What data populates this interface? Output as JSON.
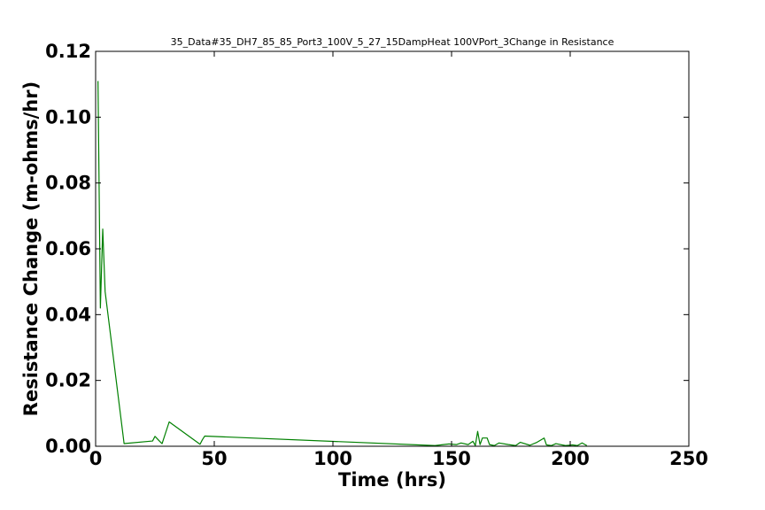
{
  "chart_data": {
    "type": "line",
    "title": "35_Data#35_DH7_85_85_Port3_100V_5_27_15DampHeat 100VPort_3Change in Resistance",
    "xlabel": "Time (hrs)",
    "ylabel": "Resistance Change (m-ohms/hr)",
    "xlim": [
      0,
      250
    ],
    "ylim": [
      0,
      0.12
    ],
    "xticks": [
      0,
      50,
      100,
      150,
      200,
      250
    ],
    "xtick_labels": [
      "0",
      "50",
      "100",
      "150",
      "200",
      "250"
    ],
    "yticks": [
      0,
      0.02,
      0.04,
      0.06,
      0.08,
      0.1,
      0.12
    ],
    "ytick_labels": [
      "0.00",
      "0.02",
      "0.04",
      "0.06",
      "0.08",
      "0.10",
      "0.12"
    ],
    "grid": false,
    "series": [
      {
        "color": "#008000",
        "x": [
          1.0,
          2.0,
          3.0,
          4.0,
          12.0,
          24.0,
          25.0,
          27.0,
          28.0,
          31.0,
          44.0,
          45.0,
          46.0,
          143.0,
          149.0,
          152.0,
          154.0,
          157.0,
          159.0,
          160.0,
          161.0,
          162.0,
          163.0,
          165.0,
          166.0,
          168.0,
          170.0,
          174.0,
          177.0,
          179.0,
          183.0,
          186.0,
          189.0,
          190.0,
          192.0,
          194.0,
          198.0,
          201.0,
          203.0,
          205.0,
          207.0
        ],
        "y": [
          0.111,
          0.042,
          0.066,
          0.047,
          0.0008,
          0.0016,
          0.003,
          0.0015,
          0.0008,
          0.0074,
          0.0006,
          0.002,
          0.0031,
          0.0002,
          0.0007,
          0.0005,
          0.001,
          0.0005,
          0.0015,
          0.0002,
          0.0045,
          0.0005,
          0.0025,
          0.0025,
          0.0005,
          0.0002,
          0.001,
          0.0005,
          0.0002,
          0.0012,
          0.0003,
          0.0012,
          0.0025,
          0.0004,
          0.0002,
          0.0008,
          0.0002,
          0.0004,
          0.0002,
          0.001,
          0.0002
        ]
      }
    ]
  }
}
